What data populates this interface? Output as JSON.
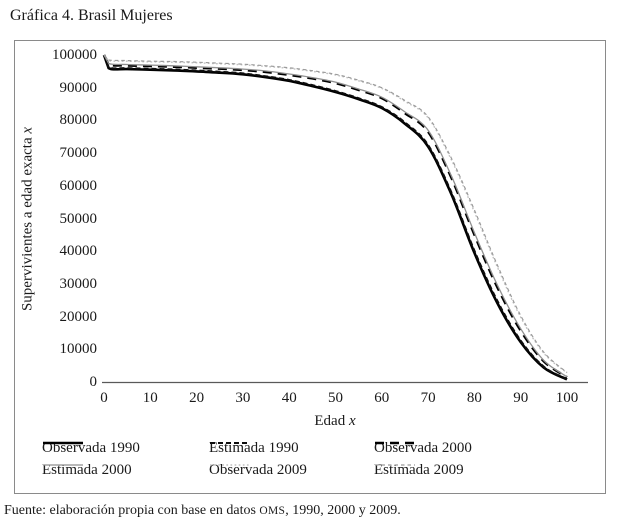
{
  "title": "Gráfica 4. Brasil Mujeres",
  "footer": {
    "prefix": "Fuente: elaboración propia con base en datos ",
    "smallcaps": "OMS",
    "suffix": ", 1990, 2000 y 2009."
  },
  "chart_data": {
    "type": "line",
    "xlabel": {
      "text": "Edad ",
      "italic": "x"
    },
    "ylabel": {
      "text": "Supervivientes a edad exacta ",
      "italic": "x"
    },
    "xlim": [
      0,
      100
    ],
    "ylim": [
      0,
      100000
    ],
    "x_ticks": [
      0,
      10,
      20,
      30,
      40,
      50,
      60,
      70,
      80,
      90,
      100
    ],
    "y_ticks": [
      0,
      10000,
      20000,
      30000,
      40000,
      50000,
      60000,
      70000,
      80000,
      90000,
      100000
    ],
    "grid": false,
    "legend_position": "bottom",
    "axis_color": "#595959",
    "x": [
      0,
      1,
      5,
      10,
      15,
      20,
      25,
      30,
      35,
      40,
      45,
      50,
      55,
      60,
      65,
      70,
      75,
      80,
      85,
      90,
      95,
      100
    ],
    "series": [
      {
        "name": "Observada 1990",
        "color": "#000000",
        "line_style": "solid",
        "width": 2.6,
        "values": [
          100000,
          96000,
          95700,
          95500,
          95300,
          95000,
          94600,
          94100,
          93200,
          92100,
          90500,
          88700,
          86500,
          83800,
          79000,
          72000,
          57500,
          39500,
          24000,
          12200,
          4400,
          800
        ]
      },
      {
        "name": "Estimada 1990",
        "color": "#0d0d0d",
        "line_style": "dash",
        "width": 1.9,
        "values": [
          100000,
          96300,
          96000,
          95800,
          95600,
          95300,
          94900,
          94400,
          93500,
          92400,
          90800,
          89000,
          86800,
          84100,
          79400,
          72500,
          58100,
          40200,
          24700,
          12700,
          4700,
          900
        ]
      },
      {
        "name": "Observada 2000",
        "color": "#000000",
        "line_style": "long-dash",
        "width": 2.4,
        "values": [
          100000,
          97100,
          96800,
          96600,
          96400,
          96100,
          95800,
          95400,
          94800,
          93900,
          92800,
          91400,
          89300,
          86800,
          82200,
          76500,
          62500,
          45000,
          28800,
          15700,
          6300,
          1500
        ]
      },
      {
        "name": "Estimada 2000",
        "color": "#8f8f8f",
        "line_style": "solid",
        "width": 1.3,
        "values": [
          100000,
          97400,
          97100,
          96900,
          96700,
          96400,
          96100,
          95700,
          95100,
          94200,
          93100,
          91700,
          89600,
          87100,
          82600,
          77000,
          63100,
          45700,
          29500,
          16300,
          6600,
          1600
        ]
      },
      {
        "name": "Observada 2009",
        "color": "#c0c0c0",
        "line_style": "dot",
        "width": 1.4,
        "values": [
          100000,
          98300,
          98100,
          97900,
          97800,
          97600,
          97300,
          97000,
          96500,
          95900,
          95000,
          93900,
          92100,
          89800,
          85800,
          80800,
          68000,
          52000,
          35000,
          19800,
          8800,
          2800
        ]
      },
      {
        "name": "Estimada 2009",
        "color": "#9b9b9b",
        "line_style": "short-dash",
        "width": 1.2,
        "values": [
          100000,
          98500,
          98300,
          98100,
          98000,
          97800,
          97500,
          97200,
          96700,
          96100,
          95200,
          94100,
          92300,
          90000,
          86100,
          81100,
          68500,
          52600,
          35600,
          20300,
          9100,
          2900
        ]
      }
    ]
  }
}
